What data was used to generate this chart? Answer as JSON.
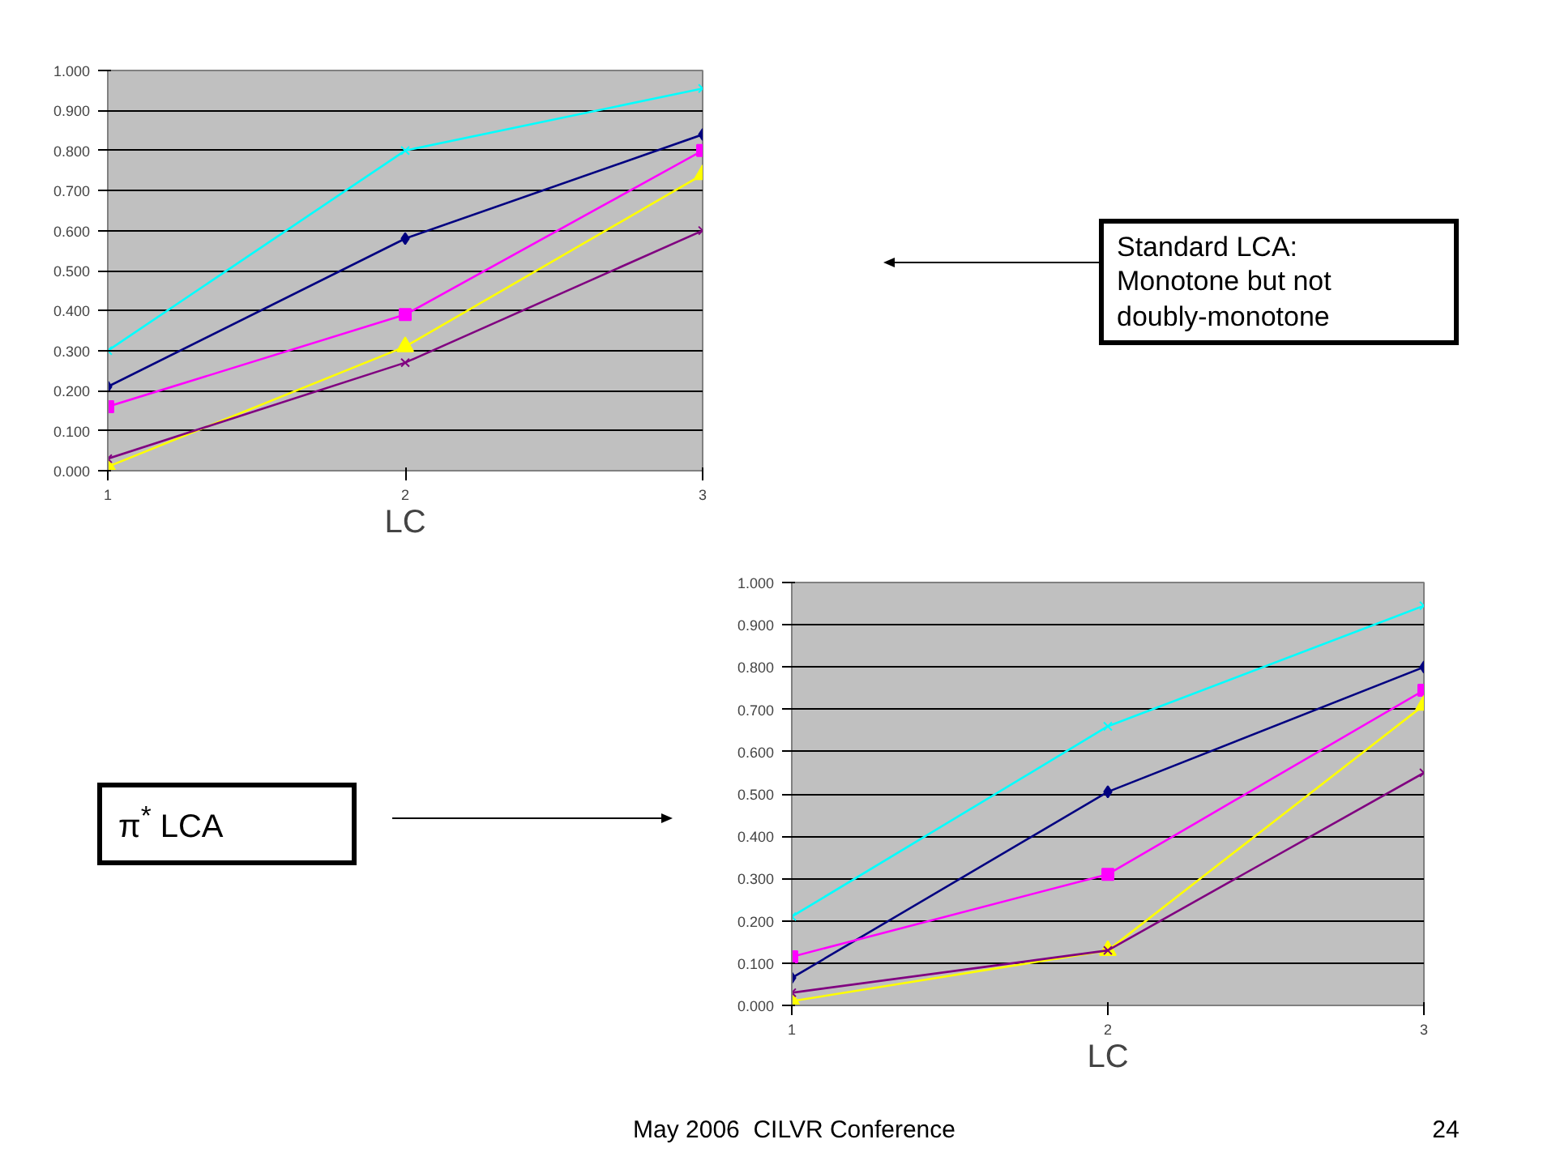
{
  "chart_data": [
    {
      "type": "line",
      "xlabel": "LC",
      "x": [
        1,
        2,
        3
      ],
      "xlim": [
        1,
        3
      ],
      "xticks": [
        1,
        2,
        3
      ],
      "ylim": [
        0,
        1
      ],
      "yticks": [
        {
          "value": 0,
          "label": "0.000"
        },
        {
          "value": 0.1,
          "label": "0.100"
        },
        {
          "value": 0.2,
          "label": "0.200"
        },
        {
          "value": 0.3,
          "label": "0.300"
        },
        {
          "value": 0.4,
          "label": "0.400"
        },
        {
          "value": 0.5,
          "label": "0.500"
        },
        {
          "value": 0.6,
          "label": "0.600"
        },
        {
          "value": 0.7,
          "label": "0.700"
        },
        {
          "value": 0.8,
          "label": "0.800"
        },
        {
          "value": 0.9,
          "label": "0.900"
        },
        {
          "value": 1,
          "label": "1.000"
        }
      ],
      "grid": "y",
      "series": [
        {
          "color": "#000080",
          "marker": "diamond",
          "values": [
            0.21,
            0.58,
            0.84
          ]
        },
        {
          "color": "#ff00ff",
          "marker": "square",
          "values": [
            0.16,
            0.39,
            0.8
          ]
        },
        {
          "color": "#ffff00",
          "marker": "triangle",
          "values": [
            0.01,
            0.31,
            0.74
          ]
        },
        {
          "color": "#00ffff",
          "marker": "cross",
          "values": [
            0.3,
            0.8,
            0.955
          ]
        },
        {
          "color": "#800080",
          "marker": "cross",
          "values": [
            0.03,
            0.27,
            0.6
          ]
        }
      ],
      "annotations": [
        "Standard LCA: Monotone but not doubly-monotone"
      ]
    },
    {
      "type": "line",
      "xlabel": "LC",
      "x": [
        1,
        2,
        3
      ],
      "xlim": [
        1,
        3
      ],
      "xticks": [
        1,
        2,
        3
      ],
      "ylim": [
        0,
        1
      ],
      "yticks": [
        {
          "value": 0,
          "label": "0.000"
        },
        {
          "value": 0.1,
          "label": "0.100"
        },
        {
          "value": 0.2,
          "label": "0.200"
        },
        {
          "value": 0.3,
          "label": "0.300"
        },
        {
          "value": 0.4,
          "label": "0.400"
        },
        {
          "value": 0.5,
          "label": "0.500"
        },
        {
          "value": 0.6,
          "label": "0.600"
        },
        {
          "value": 0.7,
          "label": "0.700"
        },
        {
          "value": 0.8,
          "label": "0.800"
        },
        {
          "value": 0.9,
          "label": "0.900"
        },
        {
          "value": 1,
          "label": "1.000"
        }
      ],
      "grid": "y",
      "series": [
        {
          "color": "#000080",
          "marker": "diamond",
          "values": [
            0.065,
            0.505,
            0.8
          ]
        },
        {
          "color": "#ff00ff",
          "marker": "square",
          "values": [
            0.115,
            0.31,
            0.745
          ]
        },
        {
          "color": "#ffff00",
          "marker": "triangle",
          "values": [
            0.01,
            0.13,
            0.71
          ]
        },
        {
          "color": "#00ffff",
          "marker": "cross",
          "values": [
            0.21,
            0.66,
            0.945
          ]
        },
        {
          "color": "#800080",
          "marker": "cross",
          "values": [
            0.03,
            0.13,
            0.55
          ]
        }
      ],
      "annotations": [
        "π$^{*}$ LCA",
        "May 2006  CILVR Conference",
        "24"
      ]
    }
  ]
}
